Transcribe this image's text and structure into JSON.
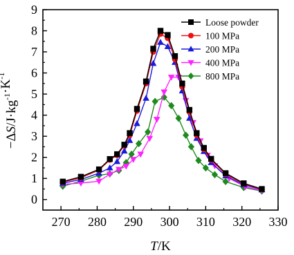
{
  "chart_data": {
    "type": "line",
    "xlabel": "T/K",
    "ylabel": "−ΔS/J·kg⁻¹·K⁻¹",
    "xlim": [
      265,
      330
    ],
    "ylim": [
      -0.5,
      9
    ],
    "xticks": [
      270,
      280,
      290,
      300,
      310,
      320,
      330
    ],
    "yticks": [
      0,
      1,
      2,
      3,
      4,
      5,
      6,
      7,
      8,
      9
    ],
    "legend_position": "top-right",
    "series": [
      {
        "name": "Loose powder",
        "color": "#000000",
        "marker": "square",
        "points": [
          [
            270.5,
            0.85
          ],
          [
            275.5,
            1.08
          ],
          [
            280.5,
            1.43
          ],
          [
            283.5,
            1.92
          ],
          [
            285.5,
            2.15
          ],
          [
            287.5,
            2.6
          ],
          [
            289,
            3.15
          ],
          [
            291,
            4.3
          ],
          [
            293.5,
            5.6
          ],
          [
            295.5,
            7.15
          ],
          [
            297.5,
            8.0
          ],
          [
            299.5,
            7.8
          ],
          [
            301.5,
            6.8
          ],
          [
            303.5,
            5.5
          ],
          [
            305.5,
            4.25
          ],
          [
            307.5,
            3.15
          ],
          [
            309.5,
            2.45
          ],
          [
            311.5,
            1.93
          ],
          [
            315.5,
            1.25
          ],
          [
            320.5,
            0.77
          ],
          [
            325.5,
            0.5
          ]
        ]
      },
      {
        "name": "100 MPa",
        "color": "#ee1111",
        "marker": "circle",
        "points": [
          [
            270.5,
            0.83
          ],
          [
            275.5,
            1.03
          ],
          [
            280.5,
            1.4
          ],
          [
            283.5,
            1.88
          ],
          [
            285.5,
            2.1
          ],
          [
            287.5,
            2.55
          ],
          [
            289,
            3.05
          ],
          [
            291,
            4.2
          ],
          [
            293.5,
            5.5
          ],
          [
            295.5,
            7.0
          ],
          [
            297.5,
            7.85
          ],
          [
            299.5,
            7.65
          ],
          [
            301.5,
            6.65
          ],
          [
            303.5,
            5.35
          ],
          [
            305.5,
            4.15
          ],
          [
            307.5,
            3.05
          ],
          [
            309.5,
            2.38
          ],
          [
            311.5,
            1.88
          ],
          [
            315.5,
            1.2
          ],
          [
            320.5,
            0.74
          ],
          [
            325.5,
            0.48
          ]
        ]
      },
      {
        "name": "200 MPa",
        "color": "#1a1adc",
        "marker": "triangle-up",
        "points": [
          [
            270.5,
            0.77
          ],
          [
            275.5,
            0.95
          ],
          [
            280.5,
            1.25
          ],
          [
            283.5,
            1.5
          ],
          [
            285.5,
            1.8
          ],
          [
            287.5,
            2.3
          ],
          [
            289,
            2.8
          ],
          [
            291,
            3.6
          ],
          [
            293.5,
            4.8
          ],
          [
            295.5,
            6.45
          ],
          [
            297.5,
            7.45
          ],
          [
            299.5,
            7.25
          ],
          [
            301.5,
            6.5
          ],
          [
            303.5,
            5.15
          ],
          [
            305.5,
            3.85
          ],
          [
            307.5,
            2.9
          ],
          [
            309.5,
            2.28
          ],
          [
            311.5,
            1.75
          ],
          [
            315.5,
            1.12
          ],
          [
            320.5,
            0.7
          ],
          [
            325.5,
            0.46
          ]
        ]
      },
      {
        "name": "400 MPa",
        "color": "#ff22ff",
        "marker": "triangle-down",
        "points": [
          [
            270.5,
            0.72
          ],
          [
            275.5,
            0.78
          ],
          [
            280.5,
            0.87
          ],
          [
            283.5,
            1.2
          ],
          [
            286,
            1.43
          ],
          [
            288,
            1.58
          ],
          [
            290,
            1.9
          ],
          [
            292,
            2.15
          ],
          [
            294.5,
            2.9
          ],
          [
            296.5,
            3.8
          ],
          [
            298.5,
            5.1
          ],
          [
            300.5,
            5.8
          ],
          [
            302.5,
            5.8
          ],
          [
            304.5,
            4.7
          ],
          [
            306.5,
            3.65
          ],
          [
            308.5,
            2.78
          ],
          [
            310.5,
            2.1
          ],
          [
            312.5,
            1.6
          ],
          [
            316.5,
            1.0
          ],
          [
            321,
            0.6
          ],
          [
            325.5,
            0.42
          ]
        ]
      },
      {
        "name": "800 MPa",
        "color": "#1e8a1e",
        "marker": "diamond",
        "points": [
          [
            270.5,
            0.63
          ],
          [
            275.5,
            0.87
          ],
          [
            280.5,
            1.15
          ],
          [
            283.5,
            1.22
          ],
          [
            286,
            1.38
          ],
          [
            288,
            1.75
          ],
          [
            289.5,
            2.15
          ],
          [
            291.5,
            2.65
          ],
          [
            294,
            3.2
          ],
          [
            296,
            4.65
          ],
          [
            298.5,
            4.85
          ],
          [
            300.5,
            4.45
          ],
          [
            302.5,
            3.85
          ],
          [
            304.5,
            3.05
          ],
          [
            306,
            2.5
          ],
          [
            308,
            1.85
          ],
          [
            310,
            1.5
          ],
          [
            312.5,
            1.18
          ],
          [
            315.5,
            0.85
          ],
          [
            320.5,
            0.57
          ],
          [
            325.5,
            0.4
          ]
        ]
      }
    ]
  }
}
